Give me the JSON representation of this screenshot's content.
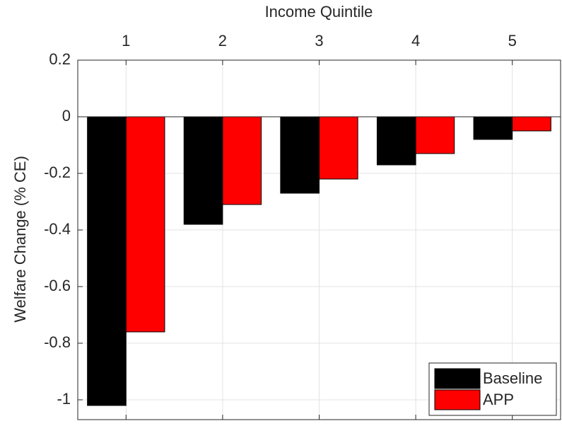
{
  "chart_data": {
    "type": "bar",
    "xlabel": "Income Quintile",
    "ylabel": "Welfare Change (% CE)",
    "x": [
      1,
      2,
      3,
      4,
      5
    ],
    "xlim": [
      0.5,
      5.5
    ],
    "xticks": [
      1,
      2,
      3,
      4,
      5
    ],
    "ylim": [
      -1.07,
      0.2
    ],
    "yticks": [
      0.2,
      0,
      -0.2,
      -0.4,
      -0.6,
      -0.8,
      -1
    ],
    "grid": true,
    "xaxis_location": "top",
    "legend": "southeast",
    "series": [
      {
        "name": "Baseline",
        "color": "#000000",
        "values": [
          -1.02,
          -0.38,
          -0.27,
          -0.17,
          -0.08
        ]
      },
      {
        "name": "APP",
        "color": "#ff0000",
        "values": [
          -0.76,
          -0.31,
          -0.22,
          -0.13,
          -0.05
        ]
      }
    ]
  }
}
